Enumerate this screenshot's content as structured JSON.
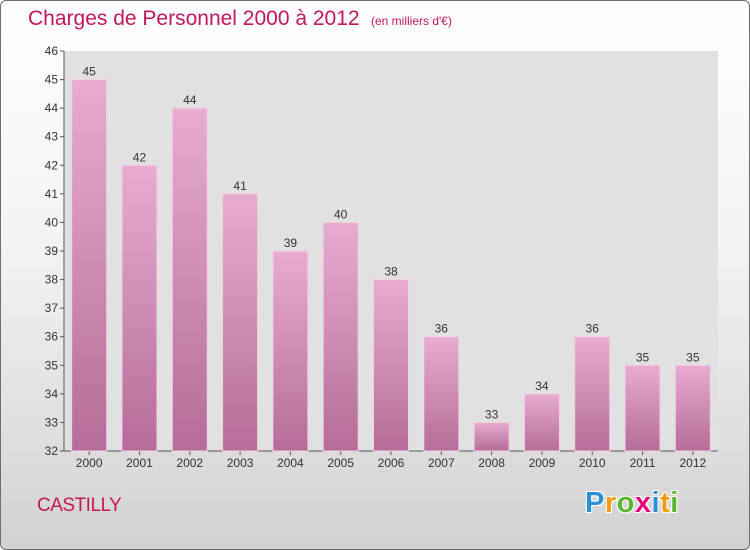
{
  "header": {
    "title": "Charges de Personnel 2000 à 2012",
    "subtitle": "(en milliers d'€)"
  },
  "footer": {
    "commune": "CASTILLY",
    "logo": [
      "P",
      "r",
      "o",
      "x",
      "i",
      "t",
      "i"
    ],
    "logo_colors": [
      "#2b8fd6",
      "#f39c12",
      "#5cb531",
      "#e6007e",
      "#2b8fd6",
      "#f39c12",
      "#5cb531"
    ]
  },
  "colors": {
    "bar_top": "#e8acd0",
    "bar_bottom": "#b46d98",
    "plot_bg": "#e1e1e1",
    "accent": "#c2185b"
  },
  "chart_data": {
    "type": "bar",
    "categories": [
      "2000",
      "2001",
      "2002",
      "2003",
      "2004",
      "2005",
      "2006",
      "2007",
      "2008",
      "2009",
      "2010",
      "2011",
      "2012"
    ],
    "values": [
      45,
      42,
      44,
      41,
      39,
      40,
      38,
      36,
      33,
      34,
      36,
      35,
      35
    ],
    "data_labels": [
      "45",
      "42",
      "44",
      "41",
      "39",
      "40",
      "38",
      "36",
      "33",
      "34",
      "36",
      "35",
      "35"
    ],
    "y_ticks": [
      32,
      33,
      34,
      35,
      36,
      37,
      38,
      39,
      40,
      41,
      42,
      43,
      44,
      45,
      46
    ],
    "ylim": [
      32,
      46
    ],
    "grid": false,
    "legend": "none"
  }
}
